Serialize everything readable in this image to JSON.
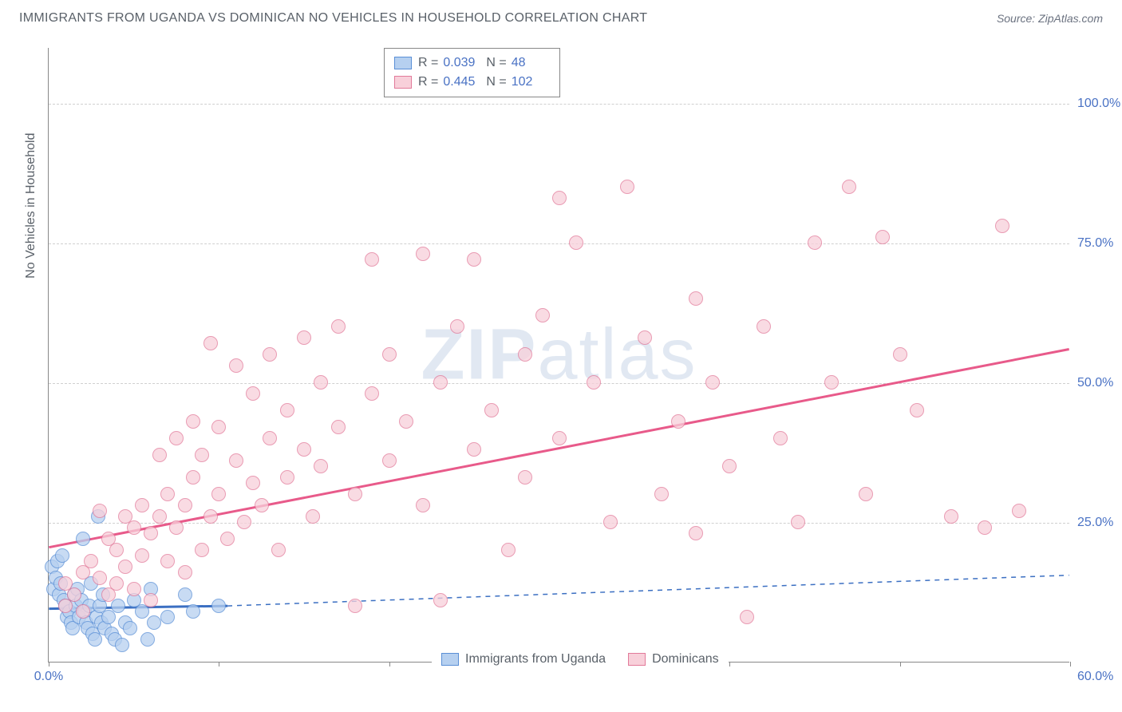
{
  "title": "IMMIGRANTS FROM UGANDA VS DOMINICAN NO VEHICLES IN HOUSEHOLD CORRELATION CHART",
  "source": "Source: ZipAtlas.com",
  "watermark_bold": "ZIP",
  "watermark_rest": "atlas",
  "chart": {
    "type": "scatter",
    "xlim": [
      0,
      60
    ],
    "ylim": [
      0,
      110
    ],
    "x_ticks": [
      0,
      10,
      20,
      30,
      40,
      50,
      60
    ],
    "y_gridlines": [
      25,
      50,
      75,
      100
    ],
    "x_labels": {
      "0": "0.0%",
      "60": "60.0%"
    },
    "y_labels": {
      "25": "25.0%",
      "50": "50.0%",
      "75": "75.0%",
      "100": "100.0%"
    },
    "ylabel": "No Vehicles in Household",
    "background_color": "#ffffff",
    "grid_color": "#d0d0d0",
    "axis_color": "#888888",
    "tick_label_color": "#4a72c4",
    "point_radius": 9,
    "series": [
      {
        "name": "Immigrants from Uganda",
        "fill": "#b6d0f0",
        "stroke": "#5a8fd6",
        "r_label": "R =",
        "r_value": "0.039",
        "n_label": "N =",
        "n_value": "48",
        "trend": {
          "color": "#3b6fc2",
          "width": 3,
          "dash": null,
          "x1": 0,
          "y1": 9.5,
          "x2": 10.5,
          "y2": 10.0,
          "dash_ext": {
            "x2": 60,
            "y2": 15.5
          }
        },
        "points": [
          [
            0.2,
            17
          ],
          [
            0.3,
            13
          ],
          [
            0.4,
            15
          ],
          [
            0.5,
            18
          ],
          [
            0.6,
            12
          ],
          [
            0.7,
            14
          ],
          [
            0.8,
            19
          ],
          [
            0.9,
            11
          ],
          [
            1.0,
            10
          ],
          [
            1.1,
            8
          ],
          [
            1.2,
            9
          ],
          [
            1.3,
            7
          ],
          [
            1.4,
            6
          ],
          [
            1.5,
            12
          ],
          [
            1.6,
            10
          ],
          [
            1.7,
            13
          ],
          [
            1.8,
            8
          ],
          [
            1.9,
            11
          ],
          [
            2.0,
            22
          ],
          [
            2.1,
            9
          ],
          [
            2.2,
            7
          ],
          [
            2.3,
            6
          ],
          [
            2.4,
            10
          ],
          [
            2.5,
            14
          ],
          [
            2.6,
            5
          ],
          [
            2.7,
            4
          ],
          [
            2.8,
            8
          ],
          [
            2.9,
            26
          ],
          [
            3.0,
            10
          ],
          [
            3.1,
            7
          ],
          [
            3.2,
            12
          ],
          [
            3.3,
            6
          ],
          [
            3.5,
            8
          ],
          [
            3.7,
            5
          ],
          [
            3.9,
            4
          ],
          [
            4.1,
            10
          ],
          [
            4.3,
            3
          ],
          [
            4.5,
            7
          ],
          [
            4.8,
            6
          ],
          [
            5.0,
            11
          ],
          [
            5.5,
            9
          ],
          [
            5.8,
            4
          ],
          [
            6.0,
            13
          ],
          [
            6.2,
            7
          ],
          [
            7.0,
            8
          ],
          [
            8.0,
            12
          ],
          [
            8.5,
            9
          ],
          [
            10,
            10
          ]
        ]
      },
      {
        "name": "Dominicans",
        "fill": "#f8d0da",
        "stroke": "#e27a9a",
        "r_label": "R =",
        "r_value": "0.445",
        "n_label": "N =",
        "n_value": "102",
        "trend": {
          "color": "#e85a8a",
          "width": 3,
          "dash": null,
          "x1": 0,
          "y1": 20.5,
          "x2": 60,
          "y2": 56.0
        },
        "points": [
          [
            1,
            10
          ],
          [
            1,
            14
          ],
          [
            1.5,
            12
          ],
          [
            2,
            9
          ],
          [
            2,
            16
          ],
          [
            2.5,
            18
          ],
          [
            3,
            15
          ],
          [
            3,
            27
          ],
          [
            3.5,
            12
          ],
          [
            3.5,
            22
          ],
          [
            4,
            14
          ],
          [
            4,
            20
          ],
          [
            4.5,
            17
          ],
          [
            4.5,
            26
          ],
          [
            5,
            13
          ],
          [
            5,
            24
          ],
          [
            5.5,
            19
          ],
          [
            5.5,
            28
          ],
          [
            6,
            11
          ],
          [
            6,
            23
          ],
          [
            6.5,
            26
          ],
          [
            6.5,
            37
          ],
          [
            7,
            18
          ],
          [
            7,
            30
          ],
          [
            7.5,
            24
          ],
          [
            7.5,
            40
          ],
          [
            8,
            16
          ],
          [
            8,
            28
          ],
          [
            8.5,
            33
          ],
          [
            8.5,
            43
          ],
          [
            9,
            20
          ],
          [
            9,
            37
          ],
          [
            9.5,
            26
          ],
          [
            9.5,
            57
          ],
          [
            10,
            42
          ],
          [
            10,
            30
          ],
          [
            10.5,
            22
          ],
          [
            11,
            36
          ],
          [
            11,
            53
          ],
          [
            11.5,
            25
          ],
          [
            12,
            32
          ],
          [
            12,
            48
          ],
          [
            12.5,
            28
          ],
          [
            13,
            40
          ],
          [
            13,
            55
          ],
          [
            13.5,
            20
          ],
          [
            14,
            33
          ],
          [
            14,
            45
          ],
          [
            15,
            38
          ],
          [
            15,
            58
          ],
          [
            15.5,
            26
          ],
          [
            16,
            50
          ],
          [
            16,
            35
          ],
          [
            17,
            42
          ],
          [
            17,
            60
          ],
          [
            18,
            10
          ],
          [
            18,
            30
          ],
          [
            19,
            48
          ],
          [
            19,
            72
          ],
          [
            20,
            36
          ],
          [
            20,
            55
          ],
          [
            21,
            43
          ],
          [
            22,
            73
          ],
          [
            22,
            28
          ],
          [
            23,
            50
          ],
          [
            23,
            11
          ],
          [
            24,
            60
          ],
          [
            25,
            38
          ],
          [
            25,
            72
          ],
          [
            26,
            45
          ],
          [
            27,
            20
          ],
          [
            28,
            55
          ],
          [
            28,
            33
          ],
          [
            29,
            62
          ],
          [
            30,
            40
          ],
          [
            30,
            83
          ],
          [
            31,
            75
          ],
          [
            32,
            50
          ],
          [
            33,
            25
          ],
          [
            34,
            85
          ],
          [
            35,
            58
          ],
          [
            36,
            30
          ],
          [
            37,
            43
          ],
          [
            38,
            65
          ],
          [
            38,
            23
          ],
          [
            39,
            50
          ],
          [
            40,
            35
          ],
          [
            41,
            8
          ],
          [
            42,
            60
          ],
          [
            43,
            40
          ],
          [
            44,
            25
          ],
          [
            45,
            75
          ],
          [
            46,
            50
          ],
          [
            47,
            85
          ],
          [
            48,
            30
          ],
          [
            49,
            76
          ],
          [
            50,
            55
          ],
          [
            51,
            45
          ],
          [
            53,
            26
          ],
          [
            55,
            24
          ],
          [
            56,
            78
          ],
          [
            57,
            27
          ]
        ]
      }
    ],
    "legend_bottom": [
      {
        "swatch_fill": "#b6d0f0",
        "swatch_stroke": "#5a8fd6",
        "label": "Immigrants from Uganda"
      },
      {
        "swatch_fill": "#f8d0da",
        "swatch_stroke": "#e27a9a",
        "label": "Dominicans"
      }
    ]
  }
}
